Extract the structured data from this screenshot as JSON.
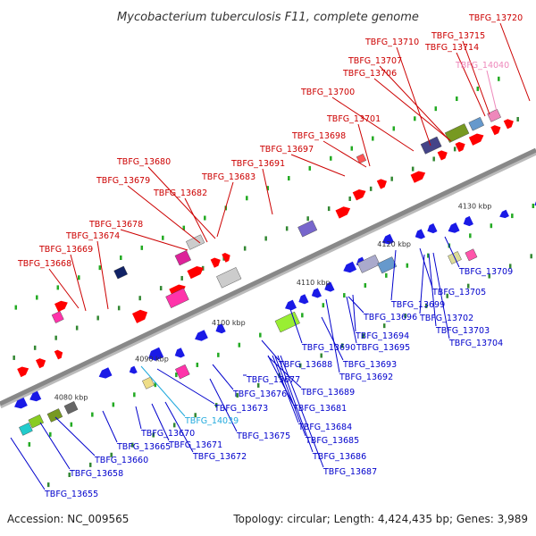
{
  "title": "Mycobacterium tuberculosis F11, complete genome",
  "footer": {
    "accession": "Accession: NC_009565",
    "summary": "Topology: circular; Length: 4,424,435 bp; Genes: 3,989"
  },
  "colors": {
    "forward_label": "#cc0000",
    "reverse_label": "#0000cc",
    "highlight_forward": "#ee88bb",
    "highlight_reverse": "#22aadd",
    "forward_gene": "#ff0000",
    "reverse_gene": "#1a1ae6",
    "backbone": "#888888"
  },
  "scale": {
    "ticks": [
      {
        "label": "4080 kbp"
      },
      {
        "label": "4090 kbp"
      },
      {
        "label": "4100 kbp"
      },
      {
        "label": "4110 kbp"
      },
      {
        "label": "4120 kbp"
      },
      {
        "label": "4130 kbp"
      }
    ]
  },
  "genes_forward": [
    {
      "label": "TBFG_13668"
    },
    {
      "label": "TBFG_13669"
    },
    {
      "label": "TBFG_13674"
    },
    {
      "label": "TBFG_13678"
    },
    {
      "label": "TBFG_13679"
    },
    {
      "label": "TBFG_13680"
    },
    {
      "label": "TBFG_13682"
    },
    {
      "label": "TBFG_13683"
    },
    {
      "label": "TBFG_13691"
    },
    {
      "label": "TBFG_13697"
    },
    {
      "label": "TBFG_13698"
    },
    {
      "label": "TBFG_13700"
    },
    {
      "label": "TBFG_13701"
    },
    {
      "label": "TBFG_13706"
    },
    {
      "label": "TBFG_13707"
    },
    {
      "label": "TBFG_13710"
    },
    {
      "label": "TBFG_13714"
    },
    {
      "label": "TBFG_13715"
    },
    {
      "label": "TBFG_13720"
    },
    {
      "label": "TBFG_14040"
    }
  ],
  "genes_reverse": [
    {
      "label": "TBFG_13655"
    },
    {
      "label": "TBFG_13658"
    },
    {
      "label": "TBFG_13660"
    },
    {
      "label": "TBFG_13665"
    },
    {
      "label": "TBFG_13670"
    },
    {
      "label": "TBFG_13671"
    },
    {
      "label": "TBFG_13672"
    },
    {
      "label": "TBFG_13673"
    },
    {
      "label": "TBFG_14039"
    },
    {
      "label": "TBFG_13675"
    },
    {
      "label": "TBFG_13676"
    },
    {
      "label": "TBFG_13677"
    },
    {
      "label": "TBFG_13681"
    },
    {
      "label": "TBFG_13684"
    },
    {
      "label": "TBFG_13685"
    },
    {
      "label": "TBFG_13686"
    },
    {
      "label": "TBFG_13687"
    },
    {
      "label": "TBFG_13688"
    },
    {
      "label": "TBFG_13689"
    },
    {
      "label": "TBFG_13690"
    },
    {
      "label": "TBFG_13692"
    },
    {
      "label": "TBFG_13693"
    },
    {
      "label": "TBFG_13694"
    },
    {
      "label": "TBFG_13695"
    },
    {
      "label": "TBFG_13696"
    },
    {
      "label": "TBFG_13699"
    },
    {
      "label": "TBFG_13702"
    },
    {
      "label": "TBFG_13703"
    },
    {
      "label": "TBFG_13704"
    },
    {
      "label": "TBFG_13705"
    },
    {
      "label": "TBFG_13709"
    }
  ]
}
